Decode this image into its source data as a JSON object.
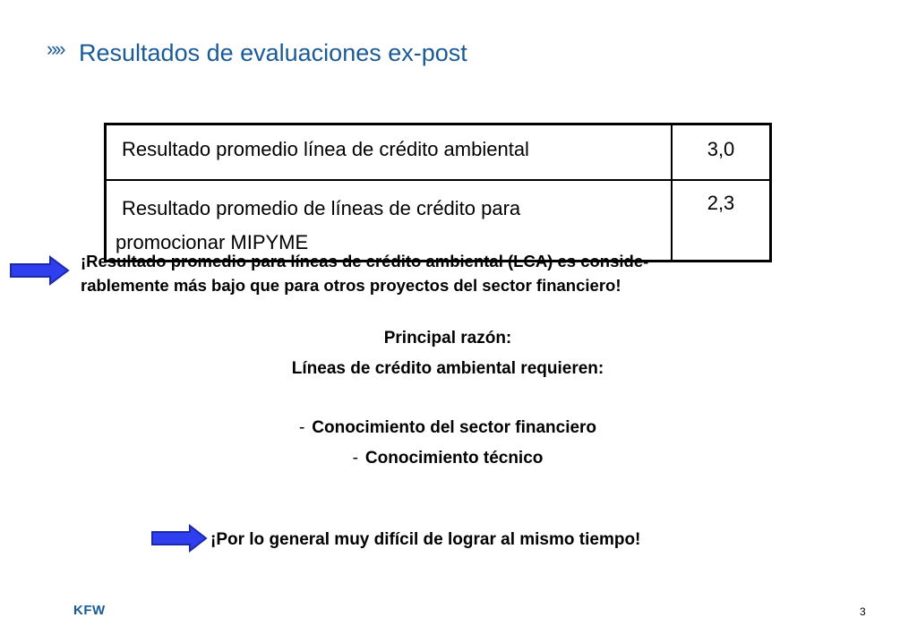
{
  "header": {
    "chevron": "»»",
    "title": "Resultados de evaluaciones ex-post"
  },
  "results_table": {
    "rows": [
      {
        "label_line1": "Resultado promedio línea de crédito ambiental",
        "label_line2": "",
        "value": "3,0"
      },
      {
        "label_line1": "Resultado promedio de líneas de crédito para",
        "label_line2": "promocionar MIPYME",
        "value": "2,3"
      }
    ]
  },
  "note1": {
    "line1": "¡Resultado promedio para líneas de crédito ambiental (LCA) es conside-",
    "line2": "rablemente más bajo que para otros proyectos del sector financiero!"
  },
  "reason": {
    "heading": "Principal razón:",
    "subheading": "Líneas de crédito ambiental requieren:",
    "items": [
      {
        "dash": "-",
        "text": "Conocimiento del sector financiero"
      },
      {
        "dash": "-",
        "text": "Conocimiento técnico"
      }
    ]
  },
  "note2": "¡Por lo general muy difícil de lograr al mismo tiempo!",
  "footer": {
    "logo": "KFW",
    "page_number": "3"
  },
  "colors": {
    "title": "#1a5a96",
    "arrow_fill": "#2f3ff0",
    "arrow_stroke": "#1b2aa8"
  },
  "icons": {
    "arrow": "right-arrow-icon"
  }
}
